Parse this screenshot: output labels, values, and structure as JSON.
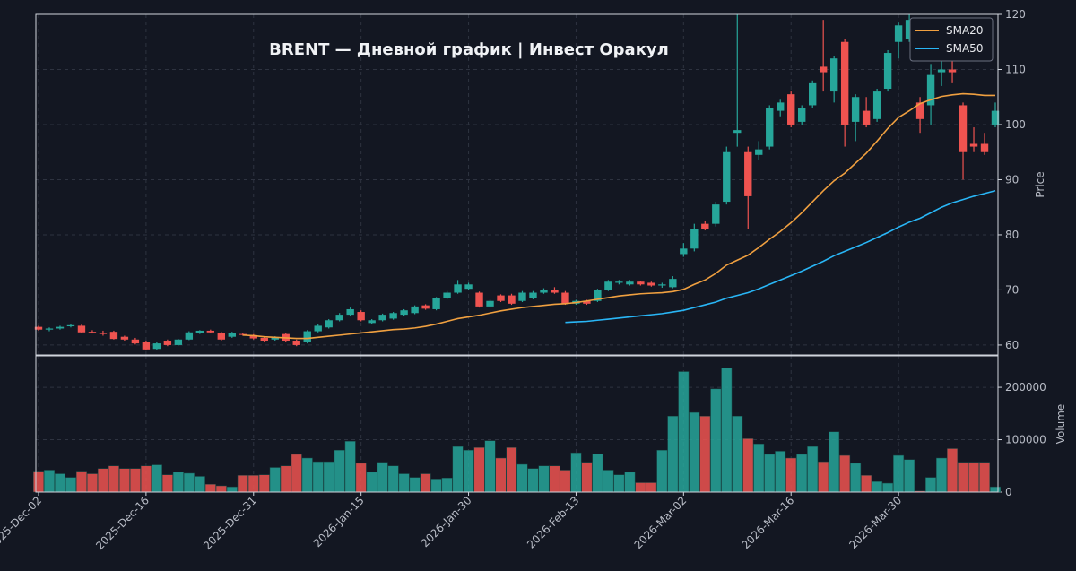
{
  "chart_data": {
    "type": "candlestick",
    "title": "BRENT  —  Дневной график  |  Инвест Оракул",
    "y_label": "Price",
    "volume_label": "Volume",
    "up_color": "#26a69a",
    "down_color": "#ef5350",
    "grid": true,
    "legend": "upper right",
    "categories": [
      "2025-Dec-02",
      null,
      null,
      null,
      null,
      null,
      null,
      null,
      null,
      null,
      "2025-Dec-16",
      null,
      null,
      null,
      null,
      null,
      null,
      null,
      null,
      null,
      "2025-Dec-31",
      null,
      null,
      null,
      null,
      null,
      null,
      null,
      null,
      null,
      "2026-Jan-15",
      null,
      null,
      null,
      null,
      null,
      null,
      null,
      null,
      null,
      "2026-Jan-30",
      null,
      null,
      null,
      null,
      null,
      null,
      null,
      null,
      null,
      "2026-Feb-13",
      null,
      null,
      null,
      null,
      null,
      null,
      null,
      null,
      null,
      "2026-Mar-02",
      null,
      null,
      null,
      null,
      null,
      null,
      null,
      null,
      null,
      "2026-Mar-16",
      null,
      null,
      null,
      null,
      null,
      null,
      null,
      null,
      null,
      "2026-Mar-30",
      null,
      null,
      null,
      null,
      null,
      null,
      null,
      null,
      null
    ],
    "open": [
      63.3,
      62.8,
      63.0,
      63.4,
      63.5,
      62.4,
      62.2,
      62.4,
      61.5,
      61.0,
      60.5,
      59.3,
      60.8,
      60.0,
      61.0,
      62.2,
      62.6,
      62.2,
      61.5,
      62.0,
      61.8,
      61.3,
      61.0,
      62.0,
      60.8,
      60.5,
      62.5,
      63.2,
      64.5,
      65.5,
      66.0,
      64.0,
      64.5,
      64.8,
      65.5,
      65.8,
      67.2,
      66.5,
      68.5,
      69.5,
      70.2,
      69.5,
      67.0,
      69.0,
      69.0,
      68.0,
      68.5,
      69.5,
      70.0,
      69.5,
      67.5,
      68.0,
      68.0,
      70.0,
      71.3,
      71.0,
      71.5,
      71.3,
      70.8,
      70.5,
      76.5,
      77.5,
      82.0,
      82.0,
      86.0,
      98.5,
      95.0,
      94.5,
      96.0,
      102.5,
      105.5,
      100.5,
      103.5,
      110.5,
      106.0,
      115.0,
      100.5,
      102.5,
      101.0,
      106.5,
      115.0,
      115.5,
      104.0,
      103.5,
      109.5,
      110.0,
      103.5,
      96.5,
      96.5,
      100.0
    ],
    "high": [
      63.5,
      63.2,
      63.5,
      63.8,
      63.7,
      62.7,
      62.6,
      62.6,
      61.7,
      61.3,
      60.8,
      60.5,
      61.0,
      61.1,
      62.5,
      62.7,
      62.8,
      62.4,
      62.4,
      62.2,
      62.0,
      61.5,
      61.6,
      62.1,
      61.0,
      62.7,
      63.8,
      64.7,
      65.8,
      66.8,
      66.3,
      64.7,
      65.7,
      66.0,
      66.5,
      67.2,
      67.4,
      68.7,
      69.8,
      71.8,
      71.3,
      69.7,
      68.2,
      69.2,
      69.3,
      69.8,
      69.8,
      70.3,
      70.5,
      69.8,
      68.2,
      68.2,
      70.2,
      71.8,
      71.8,
      71.8,
      71.7,
      71.5,
      71.3,
      72.5,
      78.5,
      82.0,
      82.5,
      86.0,
      96.0,
      120.0,
      96.0,
      97.0,
      103.5,
      104.5,
      106.0,
      103.5,
      108.0,
      119.0,
      112.5,
      115.5,
      105.5,
      105.0,
      106.5,
      113.5,
      118.5,
      120.0,
      105.0,
      111.0,
      112.0,
      111.5,
      104.0,
      99.5,
      98.5,
      104.0
    ],
    "low": [
      62.6,
      62.5,
      62.8,
      63.2,
      62.1,
      62.1,
      61.7,
      61.0,
      60.8,
      60.1,
      59.0,
      59.1,
      59.8,
      59.9,
      60.9,
      62.0,
      62.1,
      60.8,
      61.3,
      61.7,
      61.0,
      60.6,
      60.8,
      60.6,
      59.8,
      60.3,
      62.3,
      63.0,
      64.3,
      65.3,
      64.3,
      63.8,
      64.3,
      64.6,
      65.3,
      65.6,
      66.4,
      66.3,
      68.3,
      69.3,
      70.0,
      66.8,
      66.8,
      67.8,
      67.3,
      67.8,
      68.3,
      69.3,
      69.3,
      67.3,
      67.3,
      67.3,
      67.8,
      69.8,
      71.0,
      70.8,
      70.8,
      70.6,
      70.4,
      70.3,
      76.0,
      77.0,
      80.8,
      81.5,
      85.5,
      96.0,
      81.0,
      93.5,
      95.5,
      101.5,
      99.5,
      100.0,
      103.0,
      106.0,
      104.0,
      96.0,
      97.0,
      99.5,
      100.5,
      106.0,
      112.0,
      115.0,
      98.5,
      100.0,
      107.0,
      107.5,
      90.0,
      95.0,
      94.5,
      99.5
    ],
    "close": [
      62.8,
      63.0,
      63.3,
      63.6,
      62.3,
      62.3,
      62.0,
      61.1,
      61.0,
      60.3,
      59.2,
      60.3,
      60.0,
      61.0,
      62.3,
      62.6,
      62.3,
      61.0,
      62.2,
      61.9,
      61.2,
      60.8,
      61.4,
      60.8,
      60.0,
      62.5,
      63.5,
      64.5,
      65.5,
      66.5,
      64.5,
      64.5,
      65.5,
      65.8,
      66.3,
      67.0,
      66.6,
      68.5,
      69.5,
      71.0,
      71.0,
      67.0,
      68.0,
      68.0,
      67.5,
      69.5,
      69.5,
      70.0,
      69.5,
      67.5,
      68.0,
      67.5,
      70.0,
      71.5,
      71.5,
      71.5,
      71.0,
      70.8,
      71.0,
      72.0,
      77.5,
      81.0,
      81.0,
      85.5,
      95.0,
      99.0,
      87.0,
      95.5,
      103.0,
      104.0,
      100.0,
      103.0,
      107.5,
      109.5,
      112.0,
      100.0,
      105.0,
      100.0,
      106.0,
      113.0,
      118.0,
      119.0,
      101.0,
      109.0,
      110.0,
      109.5,
      95.0,
      96.0,
      95.0,
      102.5
    ],
    "volume": [
      40000,
      42000,
      35000,
      28000,
      40000,
      35000,
      45000,
      50000,
      45000,
      45000,
      50000,
      52000,
      33000,
      38000,
      36000,
      30000,
      15000,
      12000,
      10000,
      32000,
      32000,
      33000,
      47000,
      50000,
      72000,
      65000,
      58000,
      58000,
      80000,
      97000,
      55000,
      38000,
      57000,
      50000,
      35000,
      28000,
      35000,
      25000,
      27000,
      87000,
      80000,
      85000,
      98000,
      65000,
      85000,
      53000,
      45000,
      50000,
      50000,
      42000,
      75000,
      57000,
      73000,
      42000,
      33000,
      38000,
      18000,
      18000,
      80000,
      145000,
      230000,
      152000,
      145000,
      197000,
      237000,
      145000,
      102000,
      92000,
      72000,
      78000,
      65000,
      72000,
      87000,
      58000,
      115000,
      70000,
      55000,
      32000,
      20000,
      17000,
      70000,
      62000,
      2000,
      28000,
      65000,
      83000,
      57000,
      57000,
      57000,
      10000
    ],
    "series": [
      {
        "name": "SMA20",
        "color": "#f0a040",
        "values": [
          null,
          null,
          null,
          null,
          null,
          null,
          null,
          null,
          null,
          null,
          null,
          null,
          null,
          null,
          null,
          null,
          null,
          null,
          null,
          61.8,
          61.7,
          61.5,
          61.4,
          61.3,
          61.2,
          61.2,
          61.4,
          61.6,
          61.8,
          62.0,
          62.2,
          62.4,
          62.6,
          62.8,
          62.9,
          63.1,
          63.4,
          63.8,
          64.3,
          64.8,
          65.1,
          65.4,
          65.8,
          66.2,
          66.5,
          66.8,
          67.0,
          67.2,
          67.4,
          67.5,
          67.7,
          68.0,
          68.3,
          68.6,
          68.9,
          69.1,
          69.3,
          69.4,
          69.5,
          69.7,
          70.1,
          71.0,
          71.8,
          73.0,
          74.5,
          75.4,
          76.3,
          77.7,
          79.2,
          80.6,
          82.2,
          84.0,
          86.0,
          88.0,
          89.8,
          91.2,
          93.0,
          94.8,
          97.0,
          99.3,
          101.3,
          102.5,
          103.8,
          104.5,
          105.1,
          105.4,
          105.6,
          105.5,
          105.3,
          105.3
        ]
      },
      {
        "name": "SMA50",
        "color": "#29b6f6",
        "values": [
          null,
          null,
          null,
          null,
          null,
          null,
          null,
          null,
          null,
          null,
          null,
          null,
          null,
          null,
          null,
          null,
          null,
          null,
          null,
          null,
          null,
          null,
          null,
          null,
          null,
          null,
          null,
          null,
          null,
          null,
          null,
          null,
          null,
          null,
          null,
          null,
          null,
          null,
          null,
          null,
          null,
          null,
          null,
          null,
          null,
          null,
          null,
          null,
          null,
          64.1,
          64.2,
          64.3,
          64.5,
          64.7,
          64.9,
          65.1,
          65.3,
          65.5,
          65.7,
          66.0,
          66.3,
          66.8,
          67.3,
          67.8,
          68.5,
          69.0,
          69.5,
          70.2,
          71.0,
          71.8,
          72.6,
          73.4,
          74.3,
          75.2,
          76.2,
          77.0,
          77.8,
          78.6,
          79.5,
          80.4,
          81.4,
          82.3,
          83.0,
          84.0,
          85.0,
          85.8,
          86.4,
          87.0,
          87.5,
          88.0
        ]
      }
    ],
    "xlim": [
      -0.25,
      89.25
    ],
    "ylim": [
      58.2,
      120
    ],
    "yticks": [
      60,
      70,
      80,
      90,
      100,
      110,
      120
    ],
    "volume_ylim": [
      0,
      260000
    ],
    "volume_yticks": [
      0,
      100000,
      200000
    ]
  }
}
